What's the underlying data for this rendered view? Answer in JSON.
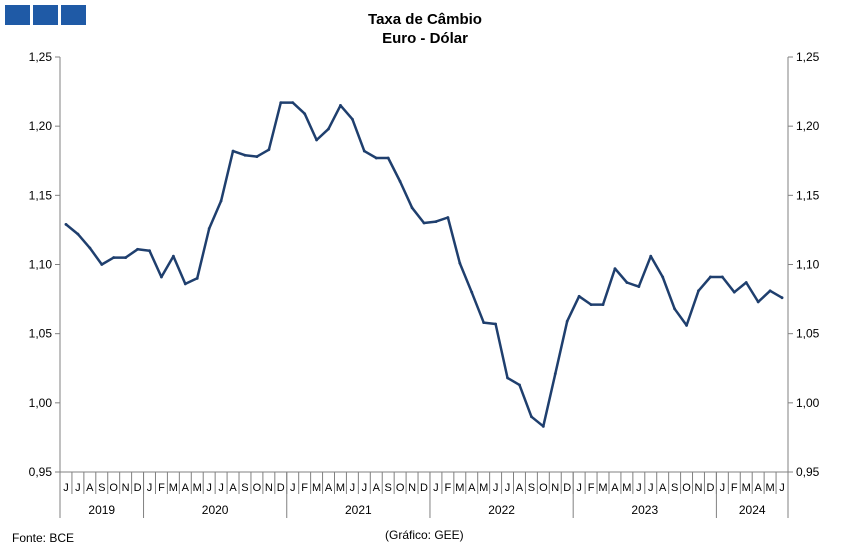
{
  "header": {
    "logo_icon": "three-blue-squares-logo",
    "title_line1": "Taxa de Câmbio",
    "title_line2": "Euro - Dólar"
  },
  "footer": {
    "source": "Fonte: BCE",
    "credit": "(Gráfico: GEE)"
  },
  "colors": {
    "line": "#1f3f6e",
    "axis": "#808080",
    "logo": "#1f5aa6"
  },
  "chart_data": {
    "type": "line",
    "title": "Taxa de Câmbio Euro - Dólar",
    "ylim": [
      0.95,
      1.25
    ],
    "yticks": [
      "1,25",
      "1,20",
      "1,15",
      "1,10",
      "1,05",
      "1,00",
      "0,95"
    ],
    "ytick_values": [
      1.25,
      1.2,
      1.15,
      1.1,
      1.05,
      1.0,
      0.95
    ],
    "right_axis_duplicate": true,
    "grid": false,
    "x_month_labels": [
      "J",
      "J",
      "A",
      "S",
      "O",
      "N",
      "D",
      "J",
      "F",
      "M",
      "A",
      "M",
      "J",
      "J",
      "A",
      "S",
      "O",
      "N",
      "D",
      "J",
      "F",
      "M",
      "A",
      "M",
      "J",
      "J",
      "A",
      "S",
      "O",
      "N",
      "D",
      "J",
      "F",
      "M",
      "A",
      "M",
      "J",
      "J",
      "A",
      "S",
      "O",
      "N",
      "D",
      "J",
      "F",
      "M",
      "A",
      "M",
      "J",
      "J",
      "A",
      "S",
      "O",
      "N",
      "D",
      "J",
      "F",
      "M",
      "A",
      "M",
      "J"
    ],
    "x_year_groups": [
      {
        "year": "2019",
        "months": 7
      },
      {
        "year": "2020",
        "months": 12
      },
      {
        "year": "2021",
        "months": 12
      },
      {
        "year": "2022",
        "months": 12
      },
      {
        "year": "2023",
        "months": 12
      },
      {
        "year": "2024",
        "months": 6
      }
    ],
    "series": [
      {
        "values": [
          1.129,
          1.122,
          1.112,
          1.1,
          1.105,
          1.105,
          1.111,
          1.11,
          1.091,
          1.106,
          1.086,
          1.09,
          1.126,
          1.146,
          1.182,
          1.179,
          1.178,
          1.183,
          1.217,
          1.217,
          1.209,
          1.19,
          1.198,
          1.215,
          1.205,
          1.182,
          1.177,
          1.177,
          1.16,
          1.141,
          1.13,
          1.131,
          1.134,
          1.101,
          1.08,
          1.058,
          1.057,
          1.018,
          1.013,
          0.99,
          0.983,
          1.021,
          1.059,
          1.077,
          1.071,
          1.071,
          1.097,
          1.087,
          1.084,
          1.106,
          1.091,
          1.068,
          1.056,
          1.081,
          1.091,
          1.091,
          1.08,
          1.087,
          1.073,
          1.081,
          1.076
        ]
      }
    ]
  }
}
